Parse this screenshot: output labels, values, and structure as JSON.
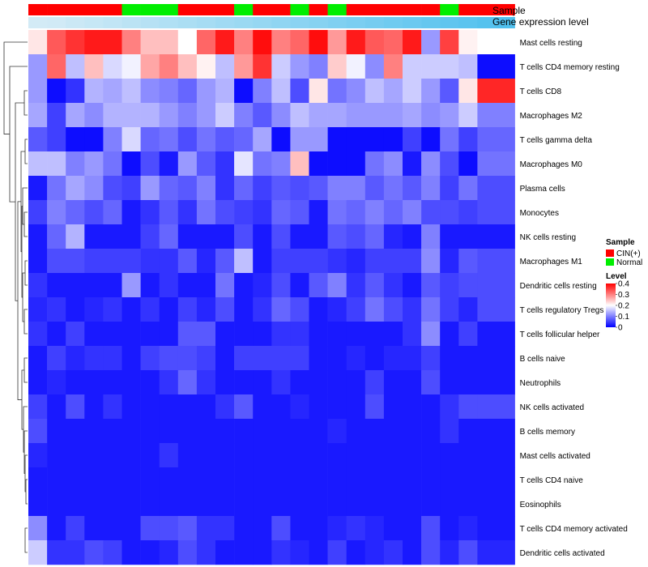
{
  "chart_data": {
    "type": "heatmap",
    "title": "",
    "annotation_tracks": [
      {
        "name": "Sample",
        "label": "Sample"
      },
      {
        "name": "Gene expression level",
        "label": "Gene expression level"
      }
    ],
    "sample_groups": [
      "CIN(+)",
      "CIN(+)",
      "CIN(+)",
      "CIN(+)",
      "CIN(+)",
      "Normal",
      "Normal",
      "Normal",
      "CIN(+)",
      "CIN(+)",
      "CIN(+)",
      "Normal",
      "CIN(+)",
      "CIN(+)",
      "Normal",
      "CIN(+)",
      "Normal",
      "CIN(+)",
      "CIN(+)",
      "CIN(+)",
      "CIN(+)",
      "CIN(+)",
      "Normal",
      "CIN(+)",
      "CIN(+)",
      "CIN(+)"
    ],
    "expression_level": [
      0.02,
      0.04,
      0.08,
      0.12,
      0.16,
      0.2,
      0.24,
      0.28,
      0.32,
      0.36,
      0.4,
      0.44,
      0.48,
      0.52,
      0.56,
      0.6,
      0.64,
      0.68,
      0.72,
      0.76,
      0.8,
      0.84,
      0.88,
      0.92,
      0.96,
      1.0
    ],
    "rows": [
      "Mast cells resting",
      "T cells CD4 memory resting",
      "T cells CD8",
      "Macrophages M2",
      "T cells gamma delta",
      "Macrophages M0",
      "Plasma cells",
      "Monocytes",
      "NK cells resting",
      "Macrophages M1",
      "Dendritic cells resting",
      "T cells regulatory  Tregs",
      "T cells follicular helper",
      "B cells naive",
      "Neutrophils",
      "NK cells activated",
      "B cells memory",
      "Mast cells activated",
      "T cells CD4 naive",
      "Eosinophils",
      "T cells CD4 memory activated",
      "Dendritic cells activated"
    ],
    "values": [
      [
        0.22,
        0.33,
        0.36,
        0.38,
        0.38,
        0.3,
        0.25,
        0.25,
        0.2,
        0.32,
        0.38,
        0.3,
        0.39,
        0.3,
        0.32,
        0.39,
        0.28,
        0.38,
        0.33,
        0.32,
        0.38,
        0.12,
        0.35,
        0.21,
        0.2,
        0.2
      ],
      [
        0.12,
        0.32,
        0.15,
        0.25,
        0.17,
        0.19,
        0.27,
        0.3,
        0.25,
        0.21,
        0.15,
        0.28,
        0.36,
        0.16,
        0.12,
        0.1,
        0.24,
        0.19,
        0.11,
        0.3,
        0.16,
        0.16,
        0.16,
        0.15,
        0.01,
        0.01
      ],
      [
        0.12,
        0.01,
        0.04,
        0.14,
        0.13,
        0.15,
        0.11,
        0.1,
        0.08,
        0.12,
        0.14,
        0.01,
        0.1,
        0.15,
        0.06,
        0.22,
        0.09,
        0.11,
        0.15,
        0.13,
        0.16,
        0.12,
        0.07,
        0.22,
        0.37,
        0.37
      ],
      [
        0.13,
        0.05,
        0.13,
        0.11,
        0.14,
        0.14,
        0.14,
        0.12,
        0.1,
        0.12,
        0.16,
        0.1,
        0.07,
        0.11,
        0.15,
        0.13,
        0.13,
        0.12,
        0.12,
        0.12,
        0.13,
        0.11,
        0.12,
        0.16,
        0.1,
        0.1
      ],
      [
        0.07,
        0.05,
        0.01,
        0.01,
        0.1,
        0.17,
        0.08,
        0.09,
        0.06,
        0.09,
        0.07,
        0.08,
        0.13,
        0.01,
        0.12,
        0.12,
        0.01,
        0.01,
        0.01,
        0.01,
        0.05,
        0.01,
        0.09,
        0.05,
        0.08,
        0.08
      ],
      [
        0.15,
        0.15,
        0.1,
        0.12,
        0.09,
        0.01,
        0.06,
        0.02,
        0.12,
        0.07,
        0.04,
        0.18,
        0.09,
        0.1,
        0.25,
        0.01,
        0.01,
        0.01,
        0.09,
        0.11,
        0.02,
        0.11,
        0.06,
        0.01,
        0.09,
        0.09
      ],
      [
        0.02,
        0.09,
        0.13,
        0.11,
        0.06,
        0.05,
        0.12,
        0.08,
        0.07,
        0.1,
        0.04,
        0.08,
        0.05,
        0.07,
        0.06,
        0.07,
        0.1,
        0.1,
        0.07,
        0.09,
        0.07,
        0.1,
        0.05,
        0.09,
        0.06,
        0.06
      ],
      [
        0.05,
        0.1,
        0.08,
        0.06,
        0.08,
        0.02,
        0.04,
        0.07,
        0.04,
        0.09,
        0.06,
        0.05,
        0.04,
        0.08,
        0.07,
        0.02,
        0.09,
        0.08,
        0.1,
        0.08,
        0.1,
        0.06,
        0.06,
        0.05,
        0.06,
        0.06
      ],
      [
        0.02,
        0.08,
        0.14,
        0.02,
        0.02,
        0.02,
        0.05,
        0.08,
        0.02,
        0.02,
        0.02,
        0.06,
        0.02,
        0.06,
        0.02,
        0.02,
        0.07,
        0.06,
        0.08,
        0.03,
        0.02,
        0.1,
        0.02,
        0.02,
        0.02,
        0.02
      ],
      [
        0.02,
        0.06,
        0.06,
        0.05,
        0.05,
        0.05,
        0.04,
        0.04,
        0.07,
        0.03,
        0.07,
        0.15,
        0.02,
        0.05,
        0.05,
        0.05,
        0.04,
        0.03,
        0.05,
        0.05,
        0.05,
        0.11,
        0.03,
        0.07,
        0.06,
        0.06
      ],
      [
        0.04,
        0.02,
        0.02,
        0.02,
        0.02,
        0.12,
        0.02,
        0.04,
        0.02,
        0.02,
        0.09,
        0.02,
        0.03,
        0.06,
        0.02,
        0.07,
        0.1,
        0.04,
        0.07,
        0.04,
        0.02,
        0.07,
        0.05,
        0.06,
        0.06,
        0.06
      ],
      [
        0.03,
        0.04,
        0.02,
        0.03,
        0.04,
        0.02,
        0.04,
        0.02,
        0.05,
        0.03,
        0.06,
        0.02,
        0.04,
        0.08,
        0.06,
        0.02,
        0.03,
        0.05,
        0.09,
        0.06,
        0.04,
        0.09,
        0.05,
        0.03,
        0.06,
        0.06
      ],
      [
        0.04,
        0.02,
        0.05,
        0.02,
        0.02,
        0.02,
        0.02,
        0.02,
        0.07,
        0.07,
        0.02,
        0.02,
        0.02,
        0.04,
        0.04,
        0.02,
        0.02,
        0.02,
        0.02,
        0.02,
        0.04,
        0.11,
        0.02,
        0.05,
        0.02,
        0.02
      ],
      [
        0.02,
        0.05,
        0.03,
        0.04,
        0.04,
        0.02,
        0.05,
        0.06,
        0.06,
        0.05,
        0.02,
        0.05,
        0.05,
        0.05,
        0.05,
        0.02,
        0.02,
        0.03,
        0.02,
        0.03,
        0.03,
        0.05,
        0.02,
        0.02,
        0.02,
        0.02
      ],
      [
        0.02,
        0.03,
        0.02,
        0.02,
        0.02,
        0.02,
        0.02,
        0.04,
        0.08,
        0.04,
        0.02,
        0.02,
        0.02,
        0.04,
        0.02,
        0.02,
        0.02,
        0.02,
        0.05,
        0.02,
        0.02,
        0.06,
        0.02,
        0.02,
        0.02,
        0.02
      ],
      [
        0.05,
        0.02,
        0.06,
        0.02,
        0.04,
        0.02,
        0.02,
        0.02,
        0.02,
        0.02,
        0.04,
        0.07,
        0.02,
        0.02,
        0.03,
        0.02,
        0.02,
        0.02,
        0.06,
        0.02,
        0.02,
        0.02,
        0.04,
        0.06,
        0.06,
        0.06
      ],
      [
        0.06,
        0.02,
        0.02,
        0.02,
        0.02,
        0.02,
        0.02,
        0.02,
        0.02,
        0.02,
        0.02,
        0.02,
        0.02,
        0.02,
        0.02,
        0.02,
        0.03,
        0.02,
        0.02,
        0.02,
        0.02,
        0.02,
        0.04,
        0.02,
        0.02,
        0.02
      ],
      [
        0.03,
        0.02,
        0.02,
        0.02,
        0.02,
        0.02,
        0.02,
        0.04,
        0.02,
        0.02,
        0.02,
        0.02,
        0.02,
        0.02,
        0.02,
        0.02,
        0.02,
        0.02,
        0.02,
        0.02,
        0.02,
        0.02,
        0.02,
        0.02,
        0.02,
        0.02
      ],
      [
        0.02,
        0.02,
        0.02,
        0.02,
        0.02,
        0.02,
        0.02,
        0.02,
        0.02,
        0.02,
        0.02,
        0.02,
        0.02,
        0.02,
        0.02,
        0.02,
        0.02,
        0.02,
        0.02,
        0.02,
        0.02,
        0.02,
        0.02,
        0.02,
        0.02,
        0.02
      ],
      [
        0.02,
        0.02,
        0.02,
        0.02,
        0.02,
        0.02,
        0.02,
        0.02,
        0.02,
        0.02,
        0.02,
        0.02,
        0.02,
        0.02,
        0.02,
        0.02,
        0.02,
        0.02,
        0.02,
        0.02,
        0.02,
        0.02,
        0.02,
        0.02,
        0.02,
        0.02
      ],
      [
        0.11,
        0.02,
        0.05,
        0.02,
        0.02,
        0.02,
        0.06,
        0.06,
        0.07,
        0.04,
        0.04,
        0.02,
        0.02,
        0.06,
        0.02,
        0.02,
        0.03,
        0.04,
        0.03,
        0.02,
        0.02,
        0.06,
        0.02,
        0.03,
        0.02,
        0.02
      ],
      [
        0.16,
        0.04,
        0.04,
        0.06,
        0.05,
        0.02,
        0.02,
        0.03,
        0.06,
        0.04,
        0.02,
        0.02,
        0.02,
        0.04,
        0.03,
        0.02,
        0.05,
        0.02,
        0.03,
        0.04,
        0.02,
        0.06,
        0.03,
        0.06,
        0.03,
        0.03
      ]
    ],
    "legend": {
      "sample_title": "Sample",
      "sample_entries": [
        {
          "label": "CIN(+)",
          "color": "#ff0000"
        },
        {
          "label": "Normal",
          "color": "#00ee00"
        }
      ],
      "level_title": "Level",
      "level_ticks": [
        {
          "value": 0.4,
          "label": "0.4"
        },
        {
          "value": 0.3,
          "label": "0.3"
        },
        {
          "value": 0.2,
          "label": "0.2"
        },
        {
          "value": 0.1,
          "label": "0.1"
        },
        {
          "value": 0,
          "label": "0"
        }
      ],
      "level_range": [
        0,
        0.4
      ]
    },
    "colors": {
      "low": "#0000ff",
      "mid": "#ffffff",
      "high": "#ff0000",
      "expr_low": "#d6ecf6",
      "expr_high": "#50c0ee"
    }
  }
}
